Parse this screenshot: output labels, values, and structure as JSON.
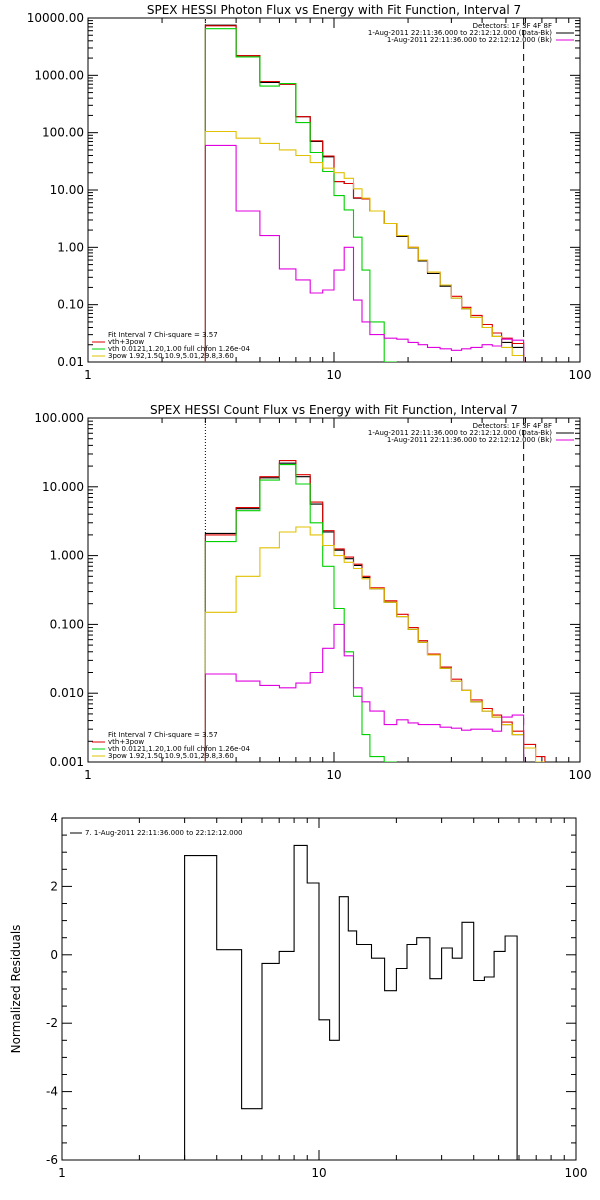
{
  "chart_data": [
    {
      "type": "line",
      "step": true,
      "title": "SPEX HESSI Photon Flux vs Energy with Fit Function, Interval 7",
      "xscale": "log",
      "yscale": "log",
      "xlim": [
        1,
        100
      ],
      "ylim": [
        0.01,
        10000
      ],
      "x_ticks": [
        1,
        10,
        100
      ],
      "x_tick_labels": [
        "1",
        "10",
        "100"
      ],
      "y_ticks": [
        0.01,
        0.1,
        1,
        10,
        100,
        1000,
        10000
      ],
      "y_tick_labels": [
        "0.01",
        "0.10",
        "1.00",
        "10.00",
        "100.00",
        "1000.00",
        "10000.00"
      ],
      "minor_ticks": true,
      "energy_edges": [
        3.0,
        4.0,
        5.0,
        6.0,
        7.0,
        8.0,
        9.0,
        10.0,
        11.0,
        12.0,
        13.0,
        14.0,
        16.0,
        18.0,
        20.0,
        22.0,
        24.0,
        27.0,
        30.0,
        33.0,
        36.0,
        40.0,
        44.0,
        48.0,
        53.0,
        59.0
      ],
      "series": [
        {
          "color": "#000000",
          "values": [
            7500,
            2200,
            750,
            700,
            190,
            70,
            38,
            14,
            13,
            7.2,
            7,
            4.3,
            2.6,
            1.55,
            0.98,
            0.58,
            0.35,
            0.21,
            0.13,
            0.085,
            0.06,
            0.04,
            0.028,
            0.022,
            0.018
          ]
        },
        {
          "color": "#e00000",
          "values": [
            7300,
            2200,
            780,
            700,
            190,
            72,
            39,
            14,
            13,
            7.3,
            7,
            4.3,
            2.6,
            1.6,
            1.0,
            0.6,
            0.37,
            0.22,
            0.14,
            0.09,
            0.065,
            0.045,
            0.032,
            0.026,
            0.021
          ]
        },
        {
          "color": "#00d000",
          "values": [
            6500,
            2100,
            650,
            720,
            150,
            45,
            21,
            8,
            4.5,
            1.5,
            0.4,
            0.05,
            0.005
          ]
        },
        {
          "color": "#e0c000",
          "values": [
            105,
            80,
            65,
            50,
            40,
            30,
            24,
            20,
            16,
            10.5,
            7.2,
            4.3,
            2.6,
            1.6,
            1.0,
            0.6,
            0.37,
            0.22,
            0.13,
            0.085,
            0.06,
            0.04,
            0.028,
            0.018,
            0.013
          ]
        },
        {
          "color": "#e000e0",
          "values": [
            60,
            4.3,
            1.6,
            0.42,
            0.27,
            0.16,
            0.18,
            0.4,
            1.0,
            0.12,
            0.05,
            0.03,
            0.026,
            0.025,
            0.022,
            0.02,
            0.018,
            0.017,
            0.016,
            0.017,
            0.018,
            0.02,
            0.019,
            0.025,
            0.024
          ]
        }
      ],
      "vlines": [
        {
          "x": 3.0,
          "style": "dotted",
          "color": "#c8a000"
        },
        {
          "x": 59.0,
          "style": "dashed",
          "color": "#000000"
        }
      ],
      "legend_tr": [
        {
          "text": "Detectors: 1F 3F 4F 8F",
          "color": "#000000"
        },
        {
          "text": "1-Aug-2011 22:11:36.000 to 22:12:12.000 (Data-Bk)",
          "color": "#000000"
        },
        {
          "text": "1-Aug-2011 22:11:36.000 to 22:12:12.000 (Bk)",
          "color": "#e000e0"
        }
      ],
      "legend_bl": [
        {
          "text": "Fit Interval 7   Chi-square = 3.57",
          "color": "#000000"
        },
        {
          "text": "vth+3pow",
          "color": "#e00000"
        },
        {
          "text": "vth 0.0121,1.20,1.00  full chfon 1.26e-04",
          "color": "#00d000"
        },
        {
          "text": "3pow 1.92,1.50,10.9,5.01,29.8,3.60",
          "color": "#e0c000"
        }
      ]
    },
    {
      "type": "line",
      "step": true,
      "title": "SPEX HESSI Count Flux vs Energy with Fit Function, Interval 7",
      "xscale": "log",
      "yscale": "log",
      "xlim": [
        1,
        100
      ],
      "ylim": [
        0.001,
        100
      ],
      "x_ticks": [
        1,
        10,
        100
      ],
      "x_tick_labels": [
        "1",
        "10",
        "100"
      ],
      "y_ticks": [
        0.001,
        0.01,
        0.1,
        1,
        10,
        100
      ],
      "y_tick_labels": [
        "0.001",
        "0.010",
        "0.100",
        "1.000",
        "10.000",
        "100.000"
      ],
      "minor_ticks": true,
      "energy_edges": [
        3.0,
        4.0,
        5.0,
        6.0,
        7.0,
        8.0,
        9.0,
        10.0,
        11.0,
        12.0,
        13.0,
        14.0,
        16.0,
        18.0,
        20.0,
        22.0,
        24.0,
        27.0,
        30.0,
        33.0,
        36.0,
        40.0,
        44.0,
        48.0,
        53.0,
        59.0,
        66.0,
        72.0
      ],
      "series": [
        {
          "color": "#000000",
          "values": [
            2.1,
            4.8,
            13.5,
            22,
            14,
            5.6,
            2.2,
            1.2,
            0.9,
            0.72,
            0.48,
            0.33,
            0.21,
            0.13,
            0.085,
            0.055,
            0.036,
            0.023,
            0.015,
            0.011,
            0.0075,
            0.0055,
            0.0045,
            0.0035,
            0.0025
          ]
        },
        {
          "color": "#e00000",
          "values": [
            2.0,
            5.0,
            14,
            24,
            15,
            6.0,
            2.3,
            1.25,
            0.95,
            0.75,
            0.5,
            0.34,
            0.22,
            0.14,
            0.09,
            0.058,
            0.037,
            0.024,
            0.016,
            0.011,
            0.008,
            0.006,
            0.0048,
            0.0038,
            0.0028,
            0.0018,
            0.0012
          ]
        },
        {
          "color": "#00d000",
          "values": [
            1.6,
            4.5,
            12.5,
            21,
            11,
            3.0,
            0.7,
            0.17,
            0.04,
            0.009,
            0.0025,
            0.0012,
            0.0005
          ]
        },
        {
          "color": "#e0c000",
          "values": [
            0.15,
            0.5,
            1.3,
            2.2,
            2.6,
            2.0,
            1.4,
            1.0,
            0.8,
            0.65,
            0.46,
            0.33,
            0.21,
            0.13,
            0.085,
            0.055,
            0.036,
            0.023,
            0.015,
            0.011,
            0.0075,
            0.0055,
            0.0045,
            0.0035,
            0.0025,
            0.0016,
            0.0009
          ]
        },
        {
          "color": "#e000e0",
          "values": [
            0.019,
            0.015,
            0.013,
            0.012,
            0.014,
            0.02,
            0.045,
            0.1,
            0.035,
            0.012,
            0.0075,
            0.0055,
            0.0035,
            0.0041,
            0.0037,
            0.0035,
            0.0035,
            0.0032,
            0.0031,
            0.0029,
            0.003,
            0.003,
            0.0028,
            0.0045,
            0.0048
          ]
        }
      ],
      "vlines": [
        {
          "x": 3.0,
          "style": "dotted",
          "color": "#000000"
        },
        {
          "x": 59.0,
          "style": "dashed",
          "color": "#000000"
        }
      ],
      "legend_tr": [
        {
          "text": "Detectors: 1F 3F 4F 8F",
          "color": "#000000"
        },
        {
          "text": "1-Aug-2011 22:11:36.000 to 22:12:12.000 (Data-Bk)",
          "color": "#000000"
        },
        {
          "text": "1-Aug-2011 22:11:36.000 to 22:12:12.000 (Bk)",
          "color": "#e000e0"
        }
      ],
      "legend_bl": [
        {
          "text": "Fit Interval 7   Chi-square = 3.57",
          "color": "#000000"
        },
        {
          "text": "vth+3pow",
          "color": "#e00000"
        },
        {
          "text": "vth 0.0121,1.20,1.00  full chfon 1.26e-04",
          "color": "#00d000"
        },
        {
          "text": "3pow 1.92,1.50,10.9,5.01,29.8,3.60",
          "color": "#e0c000"
        }
      ]
    },
    {
      "type": "line",
      "step": true,
      "title": "",
      "xscale": "log",
      "yscale": "linear",
      "xlim": [
        1,
        100
      ],
      "ylim": [
        -6,
        4
      ],
      "x_ticks": [
        1,
        10,
        100
      ],
      "x_tick_labels": [
        "1",
        "10",
        "100"
      ],
      "y_ticks": [
        -6,
        -4,
        -2,
        0,
        2,
        4
      ],
      "y_tick_labels": [
        "-6",
        "-4",
        "-2",
        "0",
        "2",
        "4"
      ],
      "ylabel": "Normalized Residuals",
      "minor_ticks": true,
      "energy_edges": [
        3.0,
        4.0,
        5.0,
        6.0,
        7.0,
        8.0,
        9.0,
        10.0,
        11.0,
        12.0,
        13.0,
        14.0,
        16.0,
        18.0,
        20.0,
        22.0,
        24.0,
        27.0,
        30.0,
        33.0,
        36.0,
        40.0,
        44.0,
        48.0,
        53.0,
        59.0
      ],
      "series": [
        {
          "color": "#000000",
          "values": [
            2.9,
            0.15,
            -4.5,
            -0.25,
            0.1,
            3.2,
            2.1,
            -1.9,
            -2.5,
            1.7,
            0.7,
            0.3,
            -0.1,
            -1.05,
            -0.4,
            0.3,
            0.5,
            -0.7,
            0.2,
            -0.1,
            0.95,
            -0.75,
            -0.65,
            0.1,
            0.55
          ]
        }
      ],
      "legend_tl": [
        {
          "text": "7.  1-Aug-2011 22:11:36.000 to 22:12:12.000",
          "color": "#000000"
        }
      ]
    }
  ]
}
